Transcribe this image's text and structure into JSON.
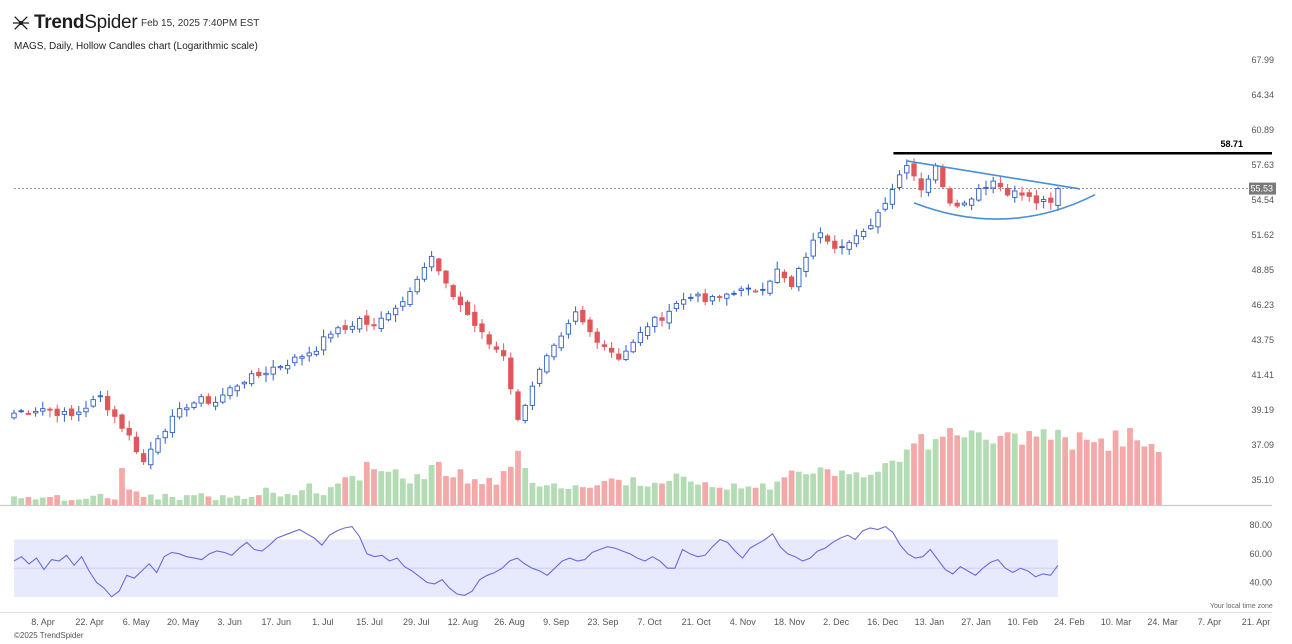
{
  "brand": {
    "name_bold": "Trend",
    "name_thin": "Spider"
  },
  "header": {
    "timestamp": "Feb 15, 2025 7:40PM EST",
    "chart_title": "MAGS, Daily, Hollow Candles chart (Logarithmic scale)"
  },
  "footer": {
    "copyright": "©2025 TrendSpider",
    "timezone_note": "Your local time zone"
  },
  "colors": {
    "up": "#2f5ec4",
    "down": "#e0575b",
    "vol_up": "#b4dcb4",
    "vol_down": "#f4a9a9",
    "rsi_line": "#6b6bd6",
    "rsi_band": "#e6eafc",
    "trend": "#4a8fd6",
    "resistance": "#000000"
  },
  "chart_data": {
    "type": "candlestick",
    "symbol": "MAGS",
    "interval": "Daily",
    "scale": "logarithmic",
    "price_axis": {
      "ticks": [
        35.1,
        37.09,
        39.19,
        41.41,
        43.75,
        46.23,
        48.85,
        51.62,
        54.54,
        57.63,
        60.89,
        64.34,
        67.99
      ],
      "min": 34.2,
      "max": 70.0
    },
    "x_axis": {
      "labels": [
        "8. Apr",
        "22. Apr",
        "6. May",
        "20. May",
        "3. Jun",
        "17. Jun",
        "1. Jul",
        "15. Jul",
        "29. Jul",
        "12. Aug",
        "26. Aug",
        "9. Sep",
        "23. Sep",
        "7. Oct",
        "21. Oct",
        "4. Nov",
        "18. Nov",
        "2. Dec",
        "16. Dec",
        "13. Jan",
        "27. Jan",
        "10. Feb",
        "24. Feb",
        "10. Mar",
        "24. Mar",
        "7. Apr",
        "21. Apr"
      ]
    },
    "last_price": 55.53,
    "annotations": {
      "resistance": 58.71
    },
    "close_path": [
      [
        0,
        39.0
      ],
      [
        4,
        39.3
      ],
      [
        8,
        38.8
      ],
      [
        12,
        40.0
      ],
      [
        14,
        38.8
      ],
      [
        16,
        37.6
      ],
      [
        18,
        36.1
      ],
      [
        20,
        37.6
      ],
      [
        22,
        38.6
      ],
      [
        24,
        39.5
      ],
      [
        26,
        39.8
      ],
      [
        28,
        39.7
      ],
      [
        30,
        40.5
      ],
      [
        32,
        41.1
      ],
      [
        34,
        41.4
      ],
      [
        36,
        41.9
      ],
      [
        38,
        42.2
      ],
      [
        40,
        42.7
      ],
      [
        42,
        43.2
      ],
      [
        44,
        44.3
      ],
      [
        46,
        44.5
      ],
      [
        48,
        45.2
      ],
      [
        50,
        44.6
      ],
      [
        52,
        45.8
      ],
      [
        54,
        46.5
      ],
      [
        56,
        48.4
      ],
      [
        58,
        49.8
      ],
      [
        60,
        47.6
      ],
      [
        62,
        46.3
      ],
      [
        64,
        44.8
      ],
      [
        66,
        43.5
      ],
      [
        68,
        42.8
      ],
      [
        70,
        38.5
      ],
      [
        72,
        40.8
      ],
      [
        74,
        42.5
      ],
      [
        76,
        43.8
      ],
      [
        78,
        45.6
      ],
      [
        80,
        44.3
      ],
      [
        82,
        43.4
      ],
      [
        84,
        42.6
      ],
      [
        86,
        43.5
      ],
      [
        88,
        44.8
      ],
      [
        90,
        45.4
      ],
      [
        92,
        46.3
      ],
      [
        94,
        47.0
      ],
      [
        96,
        46.5
      ],
      [
        98,
        46.8
      ],
      [
        100,
        47.3
      ],
      [
        102,
        47.2
      ],
      [
        104,
        47.6
      ],
      [
        106,
        48.8
      ],
      [
        108,
        47.5
      ],
      [
        110,
        50.0
      ],
      [
        112,
        52.0
      ],
      [
        114,
        50.8
      ],
      [
        116,
        51.0
      ],
      [
        118,
        51.7
      ],
      [
        120,
        53.5
      ],
      [
        122,
        55.6
      ],
      [
        124,
        57.9
      ],
      [
        126,
        55.6
      ],
      [
        128,
        57.4
      ],
      [
        130,
        54.5
      ],
      [
        132,
        54.2
      ],
      [
        134,
        55.6
      ],
      [
        136,
        56.2
      ],
      [
        138,
        55.3
      ],
      [
        140,
        55.0
      ],
      [
        142,
        54.4
      ],
      [
        144,
        54.2
      ],
      [
        145,
        55.53
      ]
    ],
    "volume": [
      1.4,
      1.1,
      1.3,
      0.9,
      1.2,
      1.3,
      1.6,
      0.7,
      0.8,
      0.9,
      1.0,
      1.5,
      1.8,
      1.1,
      0.9,
      6.0,
      2.5,
      2.2,
      1.3,
      1.7,
      0.9,
      1.8,
      1.3,
      0.8,
      1.6,
      1.6,
      1.9,
      1.4,
      0.8,
      1.6,
      1.2,
      1.5,
      1.0,
      1.3,
      1.6,
      2.8,
      2.0,
      1.4,
      1.8,
      1.6,
      2.4,
      3.5,
      1.9,
      1.6,
      2.9,
      3.5,
      4.5,
      4.7,
      4.0,
      7.0,
      5.8,
      5.5,
      5.4,
      5.8,
      4.3,
      3.5,
      5.0,
      4.2,
      6.5,
      7.0,
      4.7,
      4.5,
      5.8,
      3.5,
      4.2,
      3.4,
      4.4,
      3.3,
      5.5,
      6.2,
      8.8,
      6.0,
      3.6,
      3.0,
      3.2,
      3.5,
      2.7,
      2.6,
      3.2,
      2.9,
      2.8,
      3.2,
      3.9,
      4.3,
      4.1,
      3.2,
      4.5,
      3.1,
      3.0,
      3.6,
      3.5,
      3.9,
      5.1,
      4.6,
      3.8,
      3.3,
      3.7,
      2.9,
      2.8,
      2.5,
      3.5,
      2.7,
      3.0,
      2.8,
      3.5,
      2.5,
      3.8,
      4.5,
      5.6,
      5.4,
      5.0,
      5.1,
      6.1,
      5.8,
      4.7,
      5.6,
      5.0,
      5.3,
      4.5,
      4.9,
      5.4,
      6.8,
      7.2,
      7.0,
      9.0,
      10.0,
      11.5,
      9.0,
      10.7,
      11.1,
      12.5,
      11.3,
      11.0,
      12.1,
      11.8,
      10.6,
      10.0,
      11.2,
      11.8,
      11.6,
      9.8,
      12.0,
      11.1,
      12.3,
      10.6,
      12.2,
      11.0,
      9.0,
      11.8,
      10.6,
      10.2,
      10.8,
      8.8,
      12.1,
      9.5,
      12.5,
      10.5,
      9.5,
      9.9,
      8.6
    ],
    "rsi": {
      "ticks": [
        40.0,
        60.0,
        80.0
      ],
      "band": [
        30,
        70
      ],
      "min": 25,
      "max": 85,
      "values": [
        55,
        58,
        53,
        57,
        49,
        56,
        55,
        59,
        52,
        58,
        48,
        40,
        36,
        30,
        34,
        45,
        43,
        48,
        53,
        47,
        58,
        61,
        60,
        58,
        57,
        56,
        60,
        62,
        61,
        59,
        64,
        68,
        63,
        62,
        66,
        71,
        73,
        75,
        77,
        74,
        71,
        66,
        73,
        76,
        78,
        79,
        72,
        60,
        58,
        59,
        55,
        57,
        51,
        48,
        44,
        40,
        39,
        42,
        36,
        32,
        31,
        34,
        42,
        45,
        47,
        50,
        55,
        57,
        53,
        50,
        48,
        45,
        50,
        55,
        57,
        55,
        56,
        61,
        63,
        65,
        64,
        62,
        60,
        57,
        55,
        58,
        55,
        50,
        50,
        63,
        60,
        58,
        59,
        65,
        70,
        68,
        62,
        57,
        64,
        67,
        70,
        74,
        65,
        60,
        58,
        55,
        57,
        62,
        64,
        68,
        71,
        73,
        70,
        76,
        78,
        77,
        79,
        75,
        66,
        60,
        57,
        58,
        63,
        56,
        49,
        46,
        51,
        48,
        45,
        50,
        54,
        56,
        50,
        47,
        50,
        48,
        44,
        46,
        45,
        52
      ],
      "color": "#6b6bd6"
    }
  }
}
